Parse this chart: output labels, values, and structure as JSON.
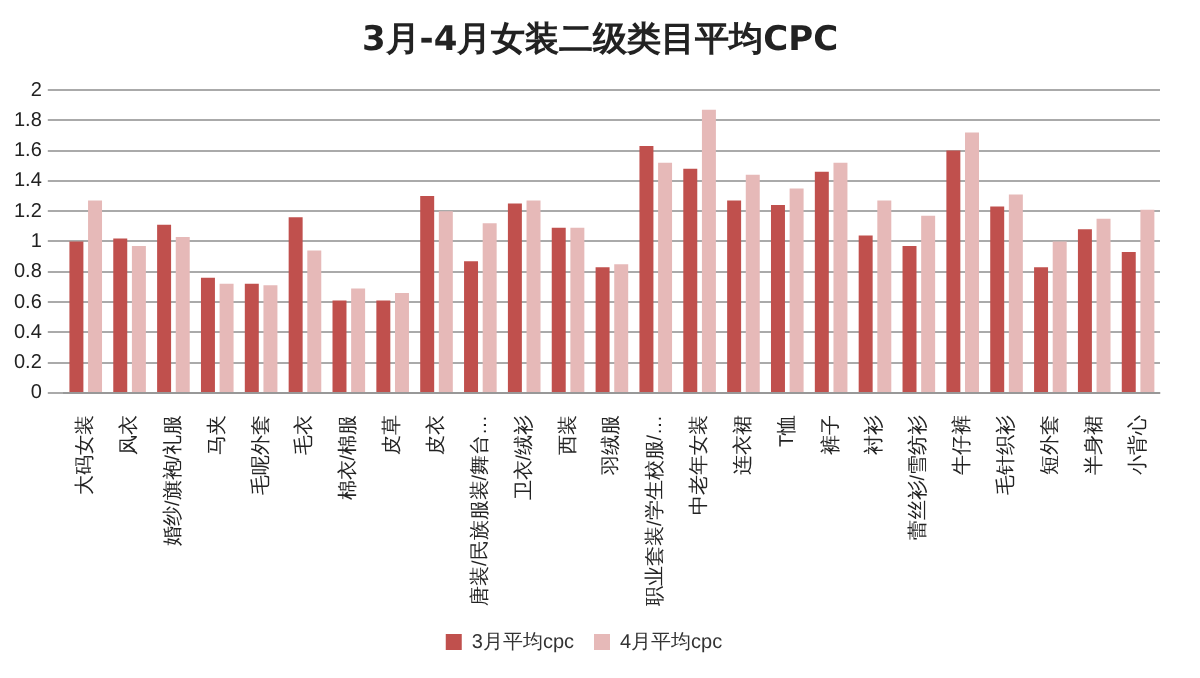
{
  "chart_data": {
    "type": "bar",
    "title": "3月-4月女装二级类目平均CPC",
    "categories": [
      "大码女装",
      "风衣",
      "婚纱/旗袍/礼服",
      "马夹",
      "毛呢外套",
      "毛衣",
      "棉衣/棉服",
      "皮草",
      "皮衣",
      "唐装/民族服装/舞台…",
      "卫衣/绒衫",
      "西装",
      "羽绒服",
      "职业套装/学生校服/…",
      "中老年女装",
      "连衣裙",
      "T恤",
      "裤子",
      "衬衫",
      "蕾丝衫/雪纺衫",
      "牛仔裤",
      "毛针织衫",
      "短外套",
      "半身裙",
      "小背心"
    ],
    "series": [
      {
        "name": "3月平均cpc",
        "color": "#c0504d",
        "values": [
          1.0,
          1.02,
          1.11,
          0.76,
          0.72,
          1.16,
          0.61,
          0.61,
          1.3,
          0.87,
          1.25,
          1.09,
          0.83,
          1.63,
          1.48,
          1.27,
          1.24,
          1.46,
          1.04,
          0.97,
          1.6,
          1.23,
          0.83,
          1.08,
          0.93
        ]
      },
      {
        "name": "4月平均cpc",
        "color": "#e6b9b8",
        "values": [
          1.27,
          0.97,
          1.03,
          0.72,
          0.71,
          0.94,
          0.69,
          0.66,
          1.2,
          1.12,
          1.27,
          1.09,
          0.85,
          1.52,
          1.87,
          1.44,
          1.35,
          1.52,
          1.27,
          1.17,
          1.72,
          1.31,
          1.0,
          1.15,
          1.21
        ]
      }
    ],
    "ylim": [
      0,
      2
    ],
    "yticks": [
      0,
      0.2,
      0.4,
      0.6,
      0.8,
      1,
      1.2,
      1.4,
      1.6,
      1.8,
      2
    ],
    "grid": "y",
    "legend": "bottom"
  }
}
